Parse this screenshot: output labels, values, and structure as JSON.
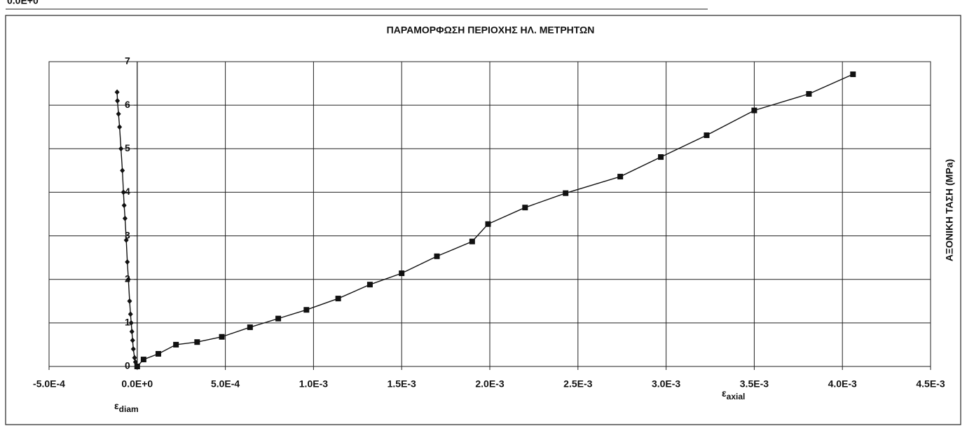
{
  "fragment_label": "0.0E+0",
  "chart_data": {
    "type": "line",
    "title": "ΠΑΡΑΜΟΡΦΩΣΗ ΠΕΡΙΟΧΗΣ ΗΛ. ΜΕΤΡΗΤΩΝ",
    "x_label": {
      "symbol": "ε",
      "subscript": "axial"
    },
    "x2_label": {
      "symbol": "ε",
      "subscript": "diam"
    },
    "y_label": "ΑΞΟΝΙΚΗ ΤΑΣΗ (MPa)",
    "xlim": [
      -0.0005,
      0.0045
    ],
    "ylim": [
      0,
      7
    ],
    "xticks": [
      {
        "value": -0.0005,
        "label": "-5.0E-4"
      },
      {
        "value": 0,
        "label": "0.0E+0"
      },
      {
        "value": 0.0005,
        "label": "5.0E-4"
      },
      {
        "value": 0.001,
        "label": "1.0E-3"
      },
      {
        "value": 0.0015,
        "label": "1.5E-3"
      },
      {
        "value": 0.002,
        "label": "2.0E-3"
      },
      {
        "value": 0.0025,
        "label": "2.5E-3"
      },
      {
        "value": 0.003,
        "label": "3.0E-3"
      },
      {
        "value": 0.0035,
        "label": "3.5E-3"
      },
      {
        "value": 0.004,
        "label": "4.0E-3"
      },
      {
        "value": 0.0045,
        "label": "4.5E-3"
      }
    ],
    "yticks": [
      0,
      1,
      2,
      3,
      4,
      5,
      6,
      7
    ],
    "grid": true,
    "series": [
      {
        "color": "#111111",
        "marker": "diamond",
        "x": [
          0,
          -1e-05,
          -1.5e-05,
          -2.2e-05,
          -2.6e-05,
          -3e-05,
          -3.4e-05,
          -3.8e-05,
          -4.3e-05,
          -5e-05,
          -5.6e-05,
          -6.2e-05,
          -6.9e-05,
          -7.4e-05,
          -7.8e-05,
          -8.4e-05,
          -9.2e-05,
          -0.0001,
          -0.000106,
          -0.000112,
          -0.000114
        ],
        "values": [
          0,
          0.1,
          0.2,
          0.4,
          0.6,
          0.8,
          1.0,
          1.2,
          1.5,
          2.0,
          2.4,
          2.9,
          3.4,
          3.7,
          4.0,
          4.5,
          5.0,
          5.5,
          5.8,
          6.1,
          6.3
        ]
      },
      {
        "color": "#111111",
        "marker": "square",
        "x": [
          0,
          3.6e-05,
          0.00012,
          0.00022,
          0.00034,
          0.00048,
          0.00064,
          0.0008,
          0.00096,
          0.00114,
          0.00132,
          0.0015,
          0.0017,
          0.0019,
          0.00199,
          0.0022,
          0.00243,
          0.00274,
          0.00297,
          0.00323,
          0.0035,
          0.00381,
          0.00406
        ],
        "values": [
          0,
          0.16,
          0.29,
          0.5,
          0.56,
          0.68,
          0.9,
          1.1,
          1.3,
          1.56,
          1.88,
          2.14,
          2.53,
          2.87,
          3.27,
          3.65,
          3.98,
          4.36,
          4.81,
          5.31,
          5.88,
          6.26,
          6.71
        ]
      }
    ]
  }
}
